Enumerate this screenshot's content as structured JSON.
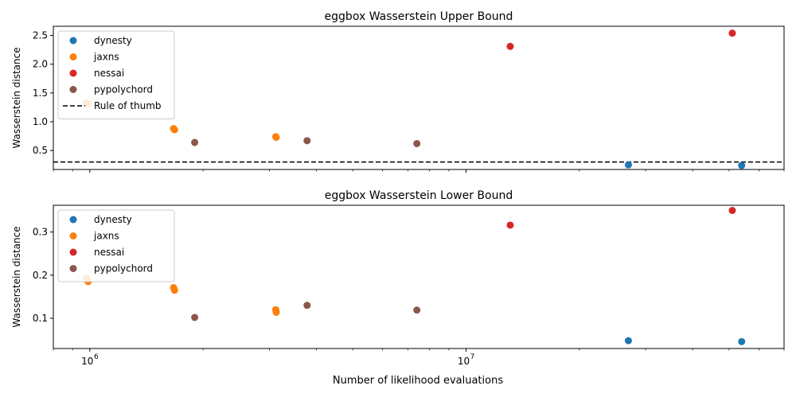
{
  "figure": {
    "xlabel": "Number of likelihood evaluations"
  },
  "colors": {
    "dynesty": "#1f77b4",
    "jaxns": "#ff7f0e",
    "nessai": "#d62728",
    "pypolychord": "#8c564b",
    "rule_of_thumb": "#000000"
  },
  "chart_data": [
    {
      "type": "scatter",
      "title": "eggbox Wasserstein Upper Bound",
      "xlabel": "",
      "ylabel": "Wasserstein distance",
      "xscale": "log",
      "xlim": [
        800000,
        70000000
      ],
      "ylim": [
        0.17,
        2.66
      ],
      "xticks": [
        {
          "value": 1000000,
          "base": "10",
          "exp": "6"
        },
        {
          "value": 10000000,
          "base": "10",
          "exp": "7"
        }
      ],
      "yticks": [
        "0.5",
        "1.0",
        "1.5",
        "2.0",
        "2.5"
      ],
      "ytick_values": [
        0.5,
        1.0,
        1.5,
        2.0,
        2.5
      ],
      "legend_position": "upper-left",
      "series": [
        {
          "name": "dynesty",
          "color": "#1f77b4",
          "points": [
            [
              27000000,
              0.25
            ],
            [
              54000000,
              0.24
            ]
          ]
        },
        {
          "name": "jaxns",
          "color": "#ff7f0e",
          "points": [
            [
              980000,
              1.33
            ],
            [
              990000,
              1.31
            ],
            [
              1670000,
              0.88
            ],
            [
              1680000,
              0.86
            ],
            [
              3120000,
              0.74
            ],
            [
              3130000,
              0.73
            ]
          ]
        },
        {
          "name": "nessai",
          "color": "#d62728",
          "points": [
            [
              13100000,
              2.31
            ],
            [
              51000000,
              2.54
            ]
          ]
        },
        {
          "name": "pypolychord",
          "color": "#8c564b",
          "points": [
            [
              1900000,
              0.64
            ],
            [
              3780000,
              0.67
            ],
            [
              7400000,
              0.62
            ]
          ]
        }
      ],
      "reference_line": {
        "name": "Rule of thumb",
        "y": 0.3,
        "style": "dashed"
      }
    },
    {
      "type": "scatter",
      "title": "eggbox Wasserstein Lower Bound",
      "xlabel": "Number of likelihood evaluations",
      "ylabel": "Wasserstein distance",
      "xscale": "log",
      "xlim": [
        800000,
        70000000
      ],
      "ylim": [
        0.03,
        0.362
      ],
      "xticks": [
        {
          "value": 1000000,
          "base": "10",
          "exp": "6"
        },
        {
          "value": 10000000,
          "base": "10",
          "exp": "7"
        }
      ],
      "yticks": [
        "0.1",
        "0.2",
        "0.3"
      ],
      "ytick_values": [
        0.1,
        0.2,
        0.3
      ],
      "legend_position": "upper-left",
      "series": [
        {
          "name": "dynesty",
          "color": "#1f77b4",
          "points": [
            [
              27000000,
              0.048
            ],
            [
              54000000,
              0.046
            ]
          ]
        },
        {
          "name": "jaxns",
          "color": "#ff7f0e",
          "points": [
            [
              980000,
              0.193
            ],
            [
              990000,
              0.185
            ],
            [
              1670000,
              0.171
            ],
            [
              1680000,
              0.165
            ],
            [
              3120000,
              0.12
            ],
            [
              3130000,
              0.114
            ]
          ]
        },
        {
          "name": "nessai",
          "color": "#d62728",
          "points": [
            [
              13100000,
              0.316
            ],
            [
              51000000,
              0.35
            ]
          ]
        },
        {
          "name": "pypolychord",
          "color": "#8c564b",
          "points": [
            [
              1900000,
              0.102
            ],
            [
              3780000,
              0.13
            ],
            [
              7400000,
              0.119
            ]
          ]
        }
      ]
    }
  ]
}
